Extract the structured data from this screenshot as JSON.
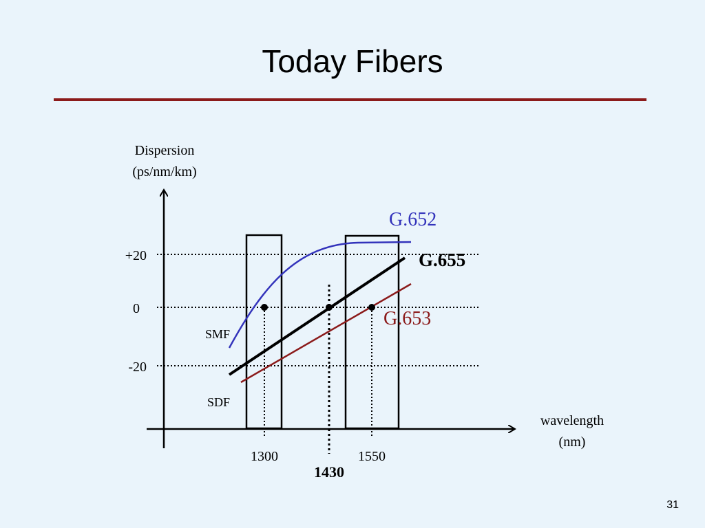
{
  "slide": {
    "title": "Today Fibers",
    "page_number": "31"
  },
  "axes": {
    "y_label_line1": "Dispersion",
    "y_label_line2": "(ps/nm/km)",
    "x_label_line1": "wavelength",
    "x_label_line2": "(nm)",
    "y_ticks": [
      "+20",
      "0",
      "-20"
    ],
    "x_ticks": [
      "1300",
      "1550"
    ],
    "x_tick_bold": "1430"
  },
  "curves": {
    "g652": {
      "label": "G.652",
      "color": "#3333bb"
    },
    "g655": {
      "label": "G.655",
      "color": "#000000"
    },
    "g653": {
      "label": "G.653",
      "color": "#8b1a1a"
    }
  },
  "fiber_labels": {
    "smf": "SMF",
    "sdf": "SDF"
  }
}
